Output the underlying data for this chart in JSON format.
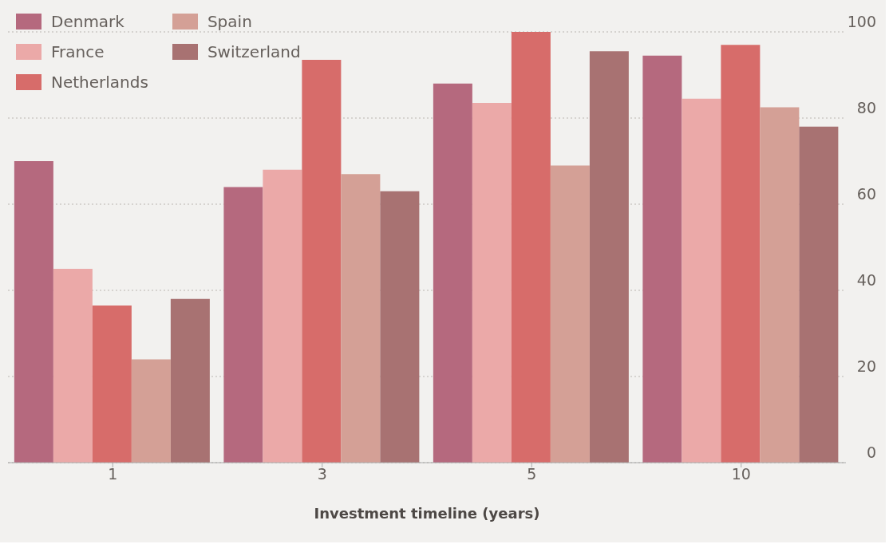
{
  "chart_data": {
    "type": "bar",
    "xlabel": "Investment timeline (years)",
    "categories": [
      "1",
      "3",
      "5",
      "10"
    ],
    "series": [
      {
        "name": "Denmark",
        "color": "#b5697e",
        "values": [
          70,
          64,
          88,
          94.5
        ]
      },
      {
        "name": "France",
        "color": "#eba9a8",
        "values": [
          45,
          68,
          83.5,
          84.5
        ]
      },
      {
        "name": "Netherlands",
        "color": "#d76c6a",
        "values": [
          36.5,
          93.5,
          100,
          97
        ]
      },
      {
        "name": "Spain",
        "color": "#d4a096",
        "values": [
          24,
          67,
          69,
          82.5
        ]
      },
      {
        "name": "Switzerland",
        "color": "#a87272",
        "values": [
          38,
          63,
          95.5,
          78
        ]
      }
    ],
    "ylim": [
      0,
      100
    ],
    "yticks": [
      0,
      20,
      40,
      60,
      80,
      100
    ],
    "grid": "y",
    "legend": "top left"
  }
}
